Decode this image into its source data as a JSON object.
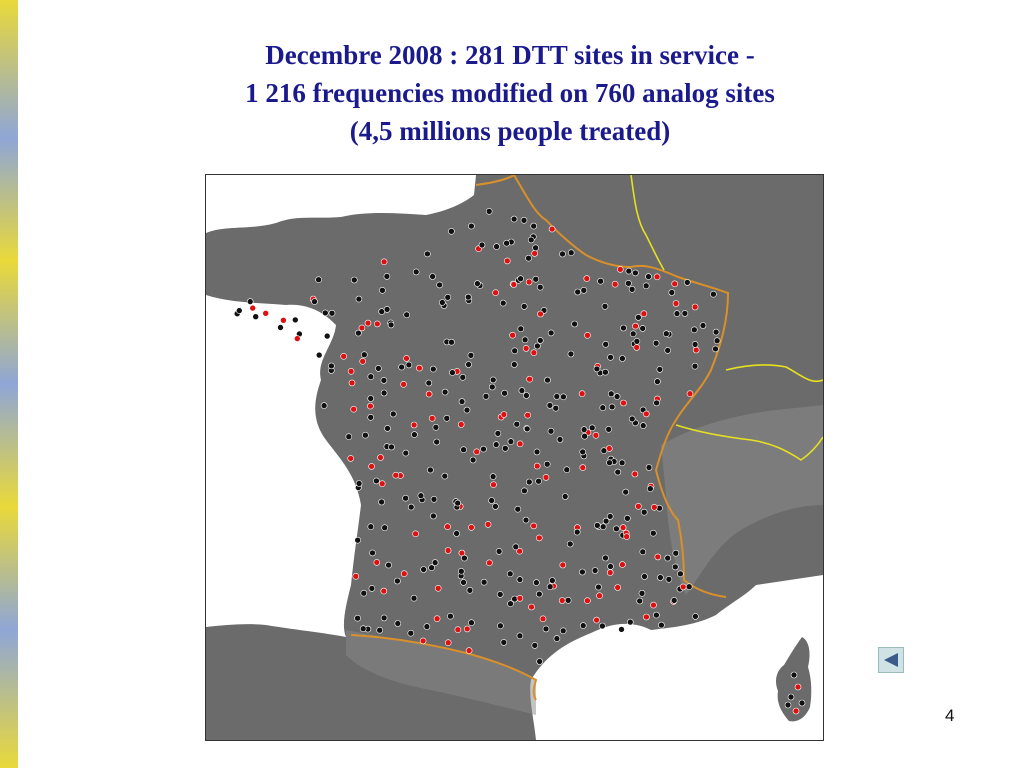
{
  "slide": {
    "title_lines": [
      "Decembre 2008 : 281 DTT sites in service -",
      "1 216 frequencies modified on 760 analog sites",
      "(4,5 millions people treated)"
    ],
    "page_number": "4"
  },
  "colors": {
    "title": "#1a1a8c",
    "dtt_site": "#dd1111",
    "analog_site": "#111111",
    "france_border": "#d9902a",
    "swiss_border": "#e6e020",
    "sea": "#ffffff",
    "land": "#6d6d6d",
    "side_bar_stripes": [
      "#e9d93a",
      "#8fa6d6"
    ]
  },
  "icons": {
    "nav_button": "back-arrow-icon"
  }
}
